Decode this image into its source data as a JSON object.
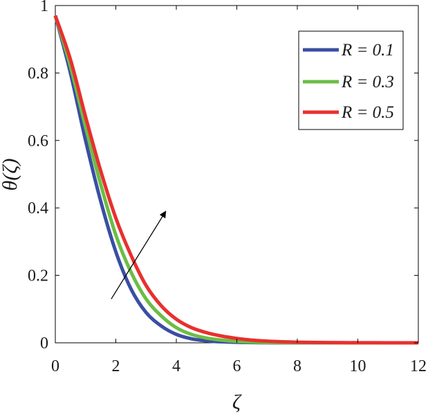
{
  "chart_data": {
    "type": "line",
    "title": "",
    "xlabel": "ζ",
    "ylabel": "θ(ζ)",
    "xlim": [
      0,
      12
    ],
    "ylim": [
      0,
      1
    ],
    "xticks": [
      "0",
      "2",
      "4",
      "6",
      "8",
      "10",
      "12"
    ],
    "yticks": [
      "0",
      "0.2",
      "0.4",
      "0.6",
      "0.8",
      "1"
    ],
    "grid": false,
    "legend_position": "top-right",
    "x": [
      0,
      0.5,
      1,
      1.5,
      2,
      2.5,
      3,
      3.5,
      4,
      4.5,
      5,
      5.5,
      6,
      6.5,
      7,
      7.5,
      8,
      9,
      10,
      11,
      12
    ],
    "series": [
      {
        "name": "R = 0.1",
        "color": "#3a4ea3",
        "values": [
          0.97,
          0.8,
          0.6,
          0.42,
          0.27,
          0.16,
          0.09,
          0.05,
          0.025,
          0.012,
          0.006,
          0.003,
          0.0015,
          0.0007,
          0.0003,
          0.0001,
          0.0,
          0.0,
          0.0,
          0.0,
          0.0
        ]
      },
      {
        "name": "R = 0.3",
        "color": "#6cbd45",
        "values": [
          0.97,
          0.82,
          0.64,
          0.47,
          0.32,
          0.21,
          0.13,
          0.08,
          0.045,
          0.025,
          0.014,
          0.008,
          0.004,
          0.002,
          0.001,
          0.0005,
          0.0003,
          0.0001,
          0.0,
          0.0,
          0.0
        ]
      },
      {
        "name": "R = 0.5",
        "color": "#e8302e",
        "values": [
          0.97,
          0.84,
          0.67,
          0.51,
          0.37,
          0.26,
          0.17,
          0.11,
          0.07,
          0.045,
          0.03,
          0.02,
          0.013,
          0.008,
          0.005,
          0.003,
          0.0019,
          0.0008,
          0.0003,
          0.0001,
          0.0
        ]
      }
    ],
    "annotations": [
      {
        "type": "arrow",
        "from": [
          1.85,
          0.13
        ],
        "to": [
          3.65,
          0.39
        ],
        "meaning": "increasing R"
      }
    ]
  }
}
